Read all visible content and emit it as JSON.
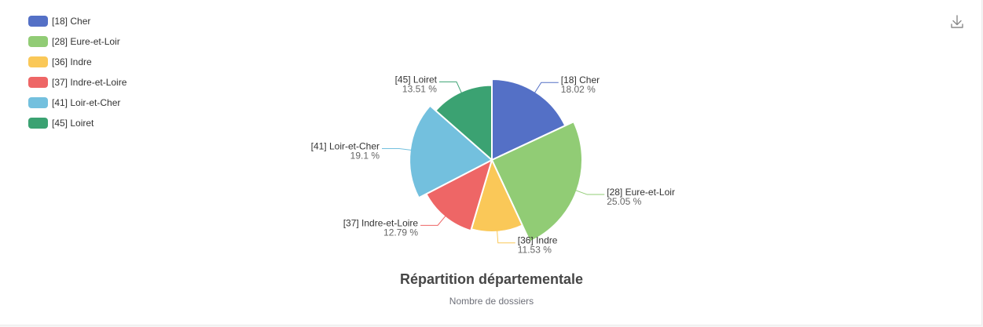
{
  "chart_data": {
    "type": "pie",
    "title": "Répartition départementale",
    "subtitle": "Nombre de dossiers",
    "legend_position": "top-left",
    "categories": [
      "[18] Cher",
      "[28] Eure-et-Loir",
      "[36] Indre",
      "[37] Indre-et-Loire",
      "[41] Loir-et-Cher",
      "[45] Loiret"
    ],
    "values": [
      18.02,
      25.05,
      11.53,
      12.79,
      19.1,
      13.51
    ],
    "value_labels": [
      "18.02 %",
      "25.05 %",
      "11.53 %",
      "12.79 %",
      "19.1 %",
      "13.51 %"
    ],
    "colors": [
      "#5470c6",
      "#91cc75",
      "#fac858",
      "#ee6666",
      "#73c0de",
      "#3ba272"
    ],
    "rose_type": "radius"
  },
  "toolbar": {
    "download_icon": "download-icon"
  }
}
